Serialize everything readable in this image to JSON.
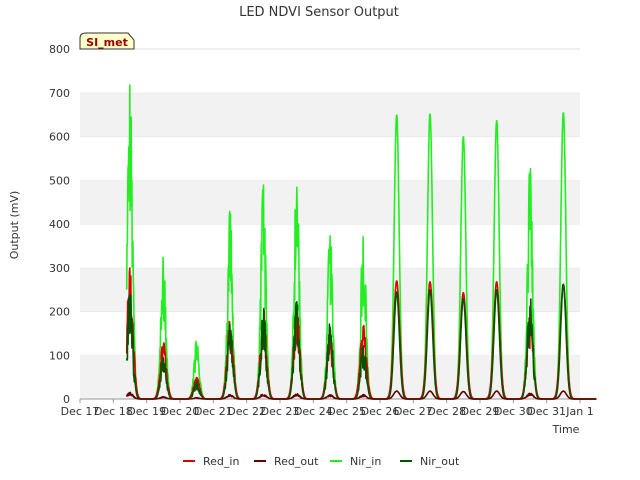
{
  "chart_data": {
    "type": "line",
    "title": "LED NDVI Sensor Output",
    "xlabel": "Time",
    "ylabel": "Output (mV)",
    "site_label": "SI_met",
    "ylim": [
      0,
      800
    ],
    "yticks": [
      0,
      100,
      200,
      300,
      400,
      500,
      600,
      700,
      800
    ],
    "xlim": [
      "2023-12-17",
      "2024-01-01"
    ],
    "xticks": [
      "Dec 17",
      "Dec 18",
      "Dec 19",
      "Dec 20",
      "Dec 21",
      "Dec 22",
      "Dec 23",
      "Dec 24",
      "Dec 25",
      "Dec 26",
      "Dec 27",
      "Dec 28",
      "Dec 29",
      "Dec 30",
      "Dec 31",
      "Jan 1"
    ],
    "grid": "horizontal bands",
    "legend_position": "bottom",
    "data_range_days": [
      0.4,
      14.5
    ],
    "daily_peaks": [
      {
        "day": "Dec 18",
        "Red_in": 300,
        "Red_out": 15,
        "Nir_in": 720,
        "Nir_out": 250
      },
      {
        "day": "Dec 19",
        "Red_in": 130,
        "Red_out": 5,
        "Nir_in": 325,
        "Nir_out": 100
      },
      {
        "day": "Dec 20",
        "Red_in": 50,
        "Red_out": 3,
        "Nir_in": 135,
        "Nir_out": 40
      },
      {
        "day": "Dec 21",
        "Red_in": 180,
        "Red_out": 10,
        "Nir_in": 430,
        "Nir_out": 170
      },
      {
        "day": "Dec 22",
        "Red_in": 210,
        "Red_out": 12,
        "Nir_in": 490,
        "Nir_out": 210
      },
      {
        "day": "Dec 23",
        "Red_in": 220,
        "Red_out": 12,
        "Nir_in": 530,
        "Nir_out": 225
      },
      {
        "day": "Dec 24",
        "Red_in": 160,
        "Red_out": 10,
        "Nir_in": 390,
        "Nir_out": 175
      },
      {
        "day": "Dec 25",
        "Red_in": 170,
        "Red_out": 10,
        "Nir_in": 405,
        "Nir_out": 125
      },
      {
        "day": "Dec 26",
        "Red_in": 270,
        "Red_out": 18,
        "Nir_in": 650,
        "Nir_out": 245
      },
      {
        "day": "Dec 27",
        "Red_in": 268,
        "Red_out": 18,
        "Nir_in": 652,
        "Nir_out": 250
      },
      {
        "day": "Dec 28",
        "Red_in": 243,
        "Red_out": 17,
        "Nir_in": 600,
        "Nir_out": 230
      },
      {
        "day": "Dec 29",
        "Red_in": 268,
        "Red_out": 18,
        "Nir_in": 637,
        "Nir_out": 250
      },
      {
        "day": "Dec 30",
        "Red_in": 210,
        "Red_out": 14,
        "Nir_in": 537,
        "Nir_out": 240
      },
      {
        "day": "Dec 31",
        "Red_in": 262,
        "Red_out": 18,
        "Nir_in": 655,
        "Nir_out": 262
      }
    ],
    "series": [
      {
        "name": "Red_in",
        "color": "#dd0000"
      },
      {
        "name": "Red_out",
        "color": "#660000"
      },
      {
        "name": "Nir_in",
        "color": "#22ee22"
      },
      {
        "name": "Nir_out",
        "color": "#005500"
      }
    ]
  }
}
